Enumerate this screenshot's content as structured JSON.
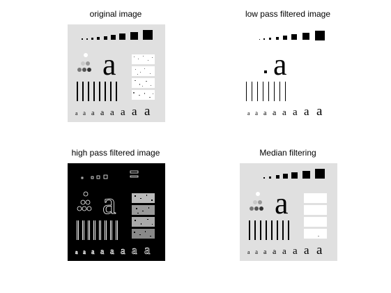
{
  "figure": {
    "panels": [
      {
        "title": "original image",
        "bg": "#e0e0e0",
        "ink": "#000000"
      },
      {
        "title": "low pass filtered image",
        "bg": "#ffffff",
        "ink": "#000000"
      },
      {
        "title": "high pass filtered image",
        "bg": "#000000",
        "ink": "#ffffff"
      },
      {
        "title": "Median filtering",
        "bg": "#e0e0e0",
        "ink": "#000000"
      }
    ],
    "glyph_char": "a"
  }
}
